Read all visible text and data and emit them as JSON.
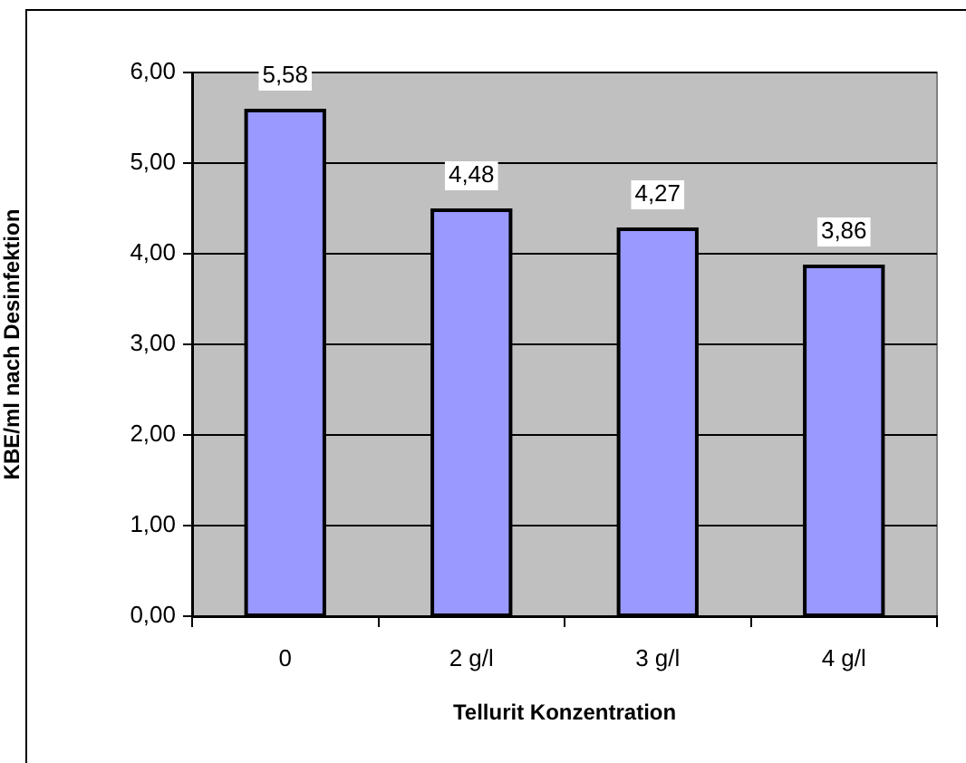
{
  "chart_data": {
    "type": "bar",
    "xlabel": "Tellurit Konzentration",
    "ylabel": "KBE/ml nach Desinfektion",
    "categories": [
      "0",
      "2 g/l",
      "3 g/l",
      "4 g/l"
    ],
    "values": [
      5.58,
      4.48,
      4.27,
      3.86
    ],
    "value_labels": [
      "5,58",
      "4,48",
      "4,27",
      "3,86"
    ],
    "color": "#9999ff",
    "ylim": [
      0,
      6
    ],
    "yticks": [
      {
        "value": 0,
        "label": "0,00"
      },
      {
        "value": 1,
        "label": "1,00"
      },
      {
        "value": 2,
        "label": "2,00"
      },
      {
        "value": 3,
        "label": "3,00"
      },
      {
        "value": 4,
        "label": "4,00"
      },
      {
        "value": 5,
        "label": "5,00"
      },
      {
        "value": 6,
        "label": "6,00"
      }
    ],
    "grid": "y"
  }
}
